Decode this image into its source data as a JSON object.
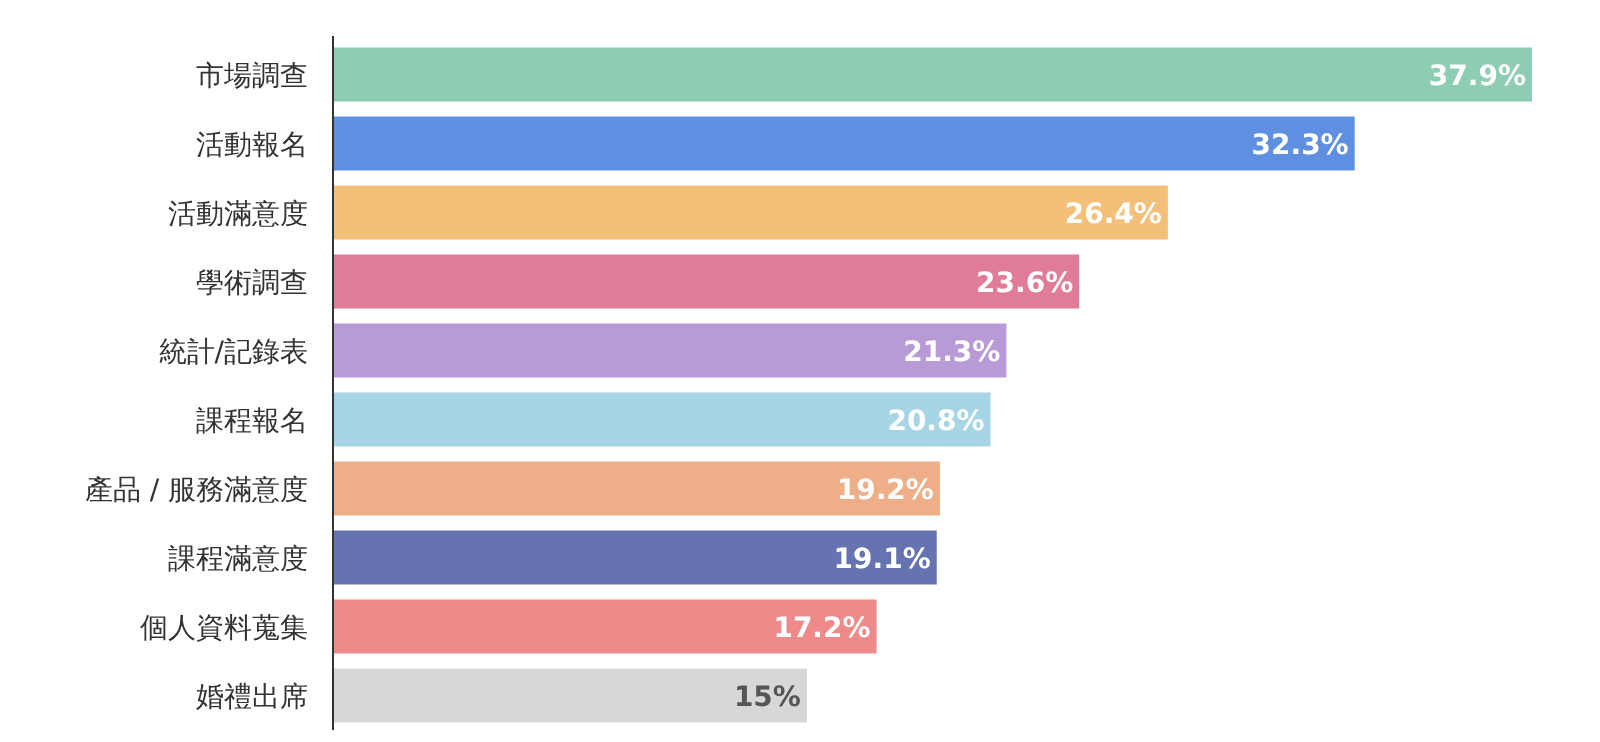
{
  "chart_data": {
    "type": "bar",
    "orientation": "horizontal",
    "categories": [
      "市場調查",
      "活動報名",
      "活動滿意度",
      "學術調查",
      "統計/記錄表",
      "課程報名",
      "產品 / 服務滿意度",
      "課程滿意度",
      "個人資料蒐集",
      "婚禮出席"
    ],
    "values": [
      37.9,
      32.3,
      26.4,
      23.6,
      21.3,
      20.8,
      19.2,
      19.1,
      17.2,
      15
    ],
    "value_labels": [
      "37.9%",
      "32.3%",
      "26.4%",
      "23.6%",
      "21.3%",
      "20.8%",
      "19.2%",
      "19.1%",
      "17.2%",
      "15%"
    ],
    "colors": [
      "#8ccdb3",
      "#5f8fe0",
      "#f3c07a",
      "#e07b98",
      "#b89bd6",
      "#a7d5e6",
      "#eeae88",
      "#6574b0",
      "#ef8a8a",
      "#d6d8d8"
    ]
  }
}
